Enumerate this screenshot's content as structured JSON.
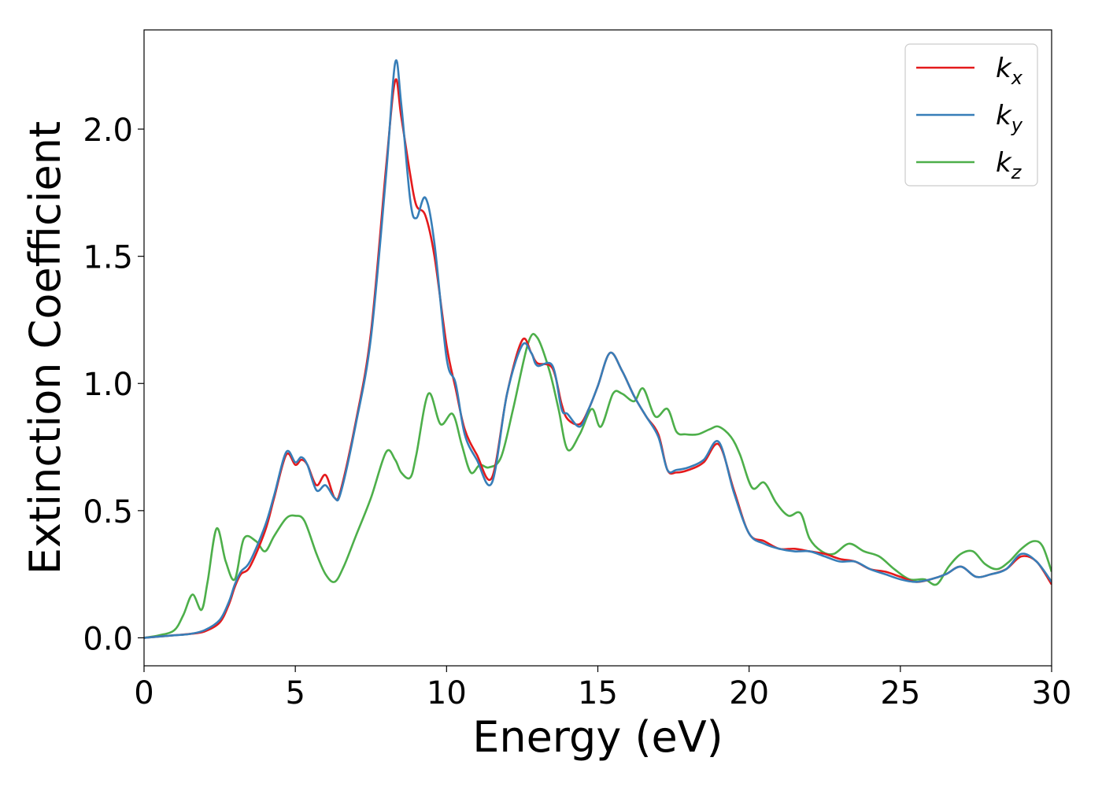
{
  "chart_data": {
    "type": "line",
    "xlabel": "Energy (eV)",
    "ylabel": "Extinction Coefficient",
    "xlim": [
      0,
      30
    ],
    "ylim": [
      -0.11,
      2.39
    ],
    "xticks": [
      0,
      5,
      10,
      15,
      20,
      25,
      30
    ],
    "xtick_labels": [
      "0",
      "5",
      "10",
      "15",
      "20",
      "25",
      "30"
    ],
    "yticks": [
      0.0,
      0.5,
      1.0,
      1.5,
      2.0
    ],
    "ytick_labels": [
      "0.0",
      "0.5",
      "1.0",
      "1.5",
      "2.0"
    ],
    "grid": false,
    "legend_position": "top-right",
    "series": [
      {
        "name": "k_x",
        "label_main": "k",
        "label_sub": "x",
        "color": "#e41a1c",
        "x": [
          0,
          0.5,
          1.0,
          1.5,
          2.0,
          2.5,
          2.8,
          3.0,
          3.2,
          3.5,
          4.0,
          4.3,
          4.7,
          5.0,
          5.2,
          5.4,
          5.7,
          6.0,
          6.3,
          6.5,
          7.0,
          7.5,
          8.0,
          8.3,
          8.5,
          8.8,
          9.0,
          9.3,
          9.6,
          10.0,
          10.3,
          10.6,
          11.0,
          11.5,
          12.0,
          12.5,
          12.8,
          13.0,
          13.5,
          13.8,
          14.0,
          14.4,
          14.7,
          15.0,
          15.4,
          15.8,
          16.2,
          16.6,
          17.0,
          17.3,
          17.6,
          18.0,
          18.5,
          19.0,
          19.5,
          20.0,
          20.5,
          21.0,
          21.5,
          22.0,
          22.5,
          23.0,
          23.5,
          24.0,
          24.5,
          25.0,
          25.5,
          26.0,
          26.5,
          27.0,
          27.5,
          28.0,
          28.5,
          29.0,
          29.5,
          30.0
        ],
        "values": [
          0.0,
          0.005,
          0.01,
          0.015,
          0.025,
          0.06,
          0.13,
          0.2,
          0.25,
          0.28,
          0.42,
          0.55,
          0.72,
          0.68,
          0.7,
          0.68,
          0.6,
          0.64,
          0.55,
          0.58,
          0.85,
          1.2,
          1.85,
          2.19,
          2.05,
          1.82,
          1.7,
          1.66,
          1.5,
          1.15,
          0.98,
          0.82,
          0.72,
          0.63,
          0.96,
          1.17,
          1.12,
          1.08,
          1.06,
          0.92,
          0.86,
          0.84,
          0.9,
          0.99,
          1.12,
          1.05,
          0.95,
          0.87,
          0.8,
          0.66,
          0.65,
          0.66,
          0.69,
          0.76,
          0.58,
          0.41,
          0.38,
          0.35,
          0.35,
          0.34,
          0.33,
          0.31,
          0.3,
          0.27,
          0.26,
          0.24,
          0.22,
          0.23,
          0.25,
          0.28,
          0.24,
          0.25,
          0.27,
          0.32,
          0.3,
          0.21
        ]
      },
      {
        "name": "k_y",
        "label_main": "k",
        "label_sub": "y",
        "color": "#377eb8",
        "x": [
          0,
          0.5,
          1.0,
          1.5,
          2.0,
          2.5,
          2.8,
          3.0,
          3.2,
          3.5,
          4.0,
          4.3,
          4.7,
          5.0,
          5.2,
          5.4,
          5.7,
          6.0,
          6.3,
          6.5,
          7.0,
          7.5,
          8.0,
          8.3,
          8.5,
          8.8,
          9.0,
          9.3,
          9.6,
          10.0,
          10.3,
          10.6,
          11.0,
          11.5,
          12.0,
          12.5,
          12.8,
          13.0,
          13.5,
          13.8,
          14.0,
          14.4,
          14.7,
          15.0,
          15.4,
          15.8,
          16.2,
          16.6,
          17.0,
          17.3,
          17.6,
          18.0,
          18.5,
          19.0,
          19.5,
          20.0,
          20.5,
          21.0,
          21.5,
          22.0,
          22.5,
          23.0,
          23.5,
          24.0,
          24.5,
          25.0,
          25.5,
          26.0,
          26.5,
          27.0,
          27.5,
          28.0,
          28.5,
          29.0,
          29.5,
          30.0
        ],
        "values": [
          0.0,
          0.005,
          0.01,
          0.015,
          0.03,
          0.07,
          0.14,
          0.21,
          0.26,
          0.3,
          0.44,
          0.56,
          0.73,
          0.69,
          0.71,
          0.68,
          0.58,
          0.6,
          0.55,
          0.57,
          0.84,
          1.18,
          1.82,
          2.26,
          2.1,
          1.72,
          1.65,
          1.73,
          1.55,
          1.1,
          1.0,
          0.8,
          0.7,
          0.61,
          0.96,
          1.15,
          1.12,
          1.07,
          1.07,
          0.9,
          0.88,
          0.83,
          0.9,
          0.99,
          1.12,
          1.05,
          0.95,
          0.87,
          0.79,
          0.66,
          0.66,
          0.67,
          0.7,
          0.77,
          0.57,
          0.41,
          0.37,
          0.35,
          0.34,
          0.34,
          0.32,
          0.3,
          0.3,
          0.27,
          0.25,
          0.23,
          0.22,
          0.23,
          0.25,
          0.28,
          0.24,
          0.25,
          0.27,
          0.33,
          0.3,
          0.22
        ]
      },
      {
        "name": "k_z",
        "label_main": "k",
        "label_sub": "z",
        "color": "#4daf4a",
        "x": [
          0,
          0.5,
          1.0,
          1.3,
          1.6,
          1.9,
          2.1,
          2.4,
          2.7,
          3.0,
          3.3,
          3.7,
          4.0,
          4.3,
          4.7,
          5.0,
          5.3,
          5.7,
          6.0,
          6.3,
          6.6,
          7.0,
          7.5,
          8.0,
          8.3,
          8.5,
          8.8,
          9.0,
          9.4,
          9.8,
          10.2,
          10.5,
          10.8,
          11.1,
          11.4,
          11.8,
          12.2,
          12.7,
          13.0,
          13.4,
          13.7,
          14.0,
          14.4,
          14.8,
          15.1,
          15.5,
          15.8,
          16.2,
          16.5,
          16.9,
          17.3,
          17.6,
          17.9,
          18.3,
          18.7,
          19.0,
          19.4,
          19.7,
          20.1,
          20.5,
          20.9,
          21.3,
          21.7,
          22.0,
          22.4,
          22.8,
          23.3,
          23.8,
          24.3,
          24.8,
          25.3,
          25.8,
          26.2,
          26.6,
          27.0,
          27.4,
          27.8,
          28.2,
          28.6,
          29.0,
          29.4,
          29.7,
          30.0
        ],
        "values": [
          0.0,
          0.01,
          0.03,
          0.09,
          0.17,
          0.11,
          0.22,
          0.43,
          0.3,
          0.23,
          0.39,
          0.38,
          0.34,
          0.4,
          0.47,
          0.48,
          0.46,
          0.33,
          0.25,
          0.22,
          0.28,
          0.4,
          0.55,
          0.73,
          0.7,
          0.65,
          0.63,
          0.72,
          0.96,
          0.84,
          0.88,
          0.76,
          0.65,
          0.68,
          0.67,
          0.71,
          0.9,
          1.16,
          1.18,
          1.05,
          0.9,
          0.74,
          0.8,
          0.9,
          0.83,
          0.96,
          0.96,
          0.93,
          0.98,
          0.87,
          0.9,
          0.81,
          0.8,
          0.8,
          0.82,
          0.83,
          0.79,
          0.72,
          0.59,
          0.61,
          0.53,
          0.48,
          0.49,
          0.39,
          0.34,
          0.33,
          0.37,
          0.34,
          0.32,
          0.27,
          0.23,
          0.23,
          0.21,
          0.28,
          0.33,
          0.34,
          0.29,
          0.27,
          0.3,
          0.35,
          0.38,
          0.36,
          0.26
        ]
      }
    ]
  }
}
